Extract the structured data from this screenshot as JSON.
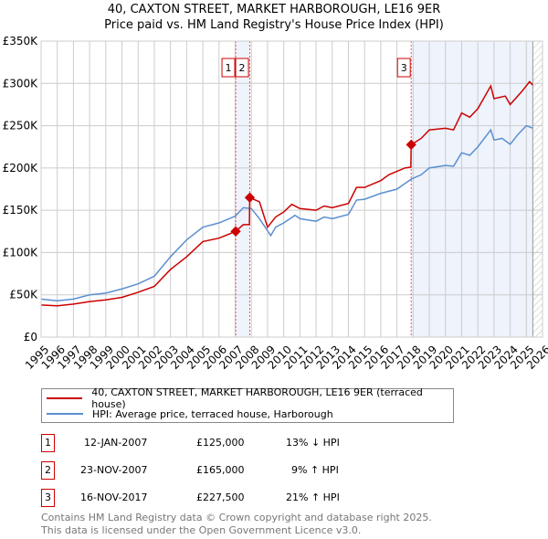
{
  "title": "40, CAXTON STREET, MARKET HARBOROUGH, LE16 9ER",
  "subtitle": "Price paid vs. HM Land Registry's House Price Index (HPI)",
  "chart_data": {
    "type": "line",
    "xlim": [
      1995,
      2026
    ],
    "ylim": [
      0,
      350000
    ],
    "x_ticks": [
      "1995",
      "1996",
      "1997",
      "1998",
      "1999",
      "2000",
      "2001",
      "2002",
      "2003",
      "2004",
      "2005",
      "2006",
      "2007",
      "2008",
      "2009",
      "2010",
      "2011",
      "2012",
      "2013",
      "2014",
      "2015",
      "2016",
      "2017",
      "2018",
      "2019",
      "2020",
      "2021",
      "2022",
      "2023",
      "2024",
      "2025",
      "2026"
    ],
    "y_ticks": [
      {
        "v": 0,
        "label": "£0"
      },
      {
        "v": 50000,
        "label": "£50K"
      },
      {
        "v": 100000,
        "label": "£100K"
      },
      {
        "v": 150000,
        "label": "£150K"
      },
      {
        "v": 200000,
        "label": "£200K"
      },
      {
        "v": 250000,
        "label": "£250K"
      },
      {
        "v": 300000,
        "label": "£300K"
      },
      {
        "v": 350000,
        "label": "£350K"
      }
    ],
    "series": [
      {
        "name": "40, CAXTON STREET, MARKET HARBOROUGH, LE16 9ER (terraced house)",
        "color": "#cc0000",
        "x": [
          1995,
          1996,
          1997,
          1998,
          1999,
          2000,
          2001,
          2002,
          2003,
          2004,
          2005,
          2006,
          2007.03,
          2007.5,
          2007.88,
          2007.9,
          2008.5,
          2009,
          2009.5,
          2010,
          2010.5,
          2011,
          2012,
          2012.5,
          2013,
          2014,
          2014.5,
          2015,
          2016,
          2016.5,
          2017.5,
          2017.86,
          2017.88,
          2018.5,
          2019,
          2020,
          2020.5,
          2021,
          2021.5,
          2022,
          2022.8,
          2023,
          2023.7,
          2024,
          2024.7,
          2025.2,
          2025.4
        ],
        "y": [
          38000,
          37000,
          39000,
          42000,
          44000,
          47000,
          53000,
          60000,
          80000,
          95000,
          113000,
          117000,
          125000,
          133000,
          133000,
          165000,
          160000,
          130000,
          142000,
          148000,
          157000,
          152000,
          150000,
          155000,
          153000,
          158000,
          177000,
          177000,
          185000,
          192000,
          200000,
          201000,
          227500,
          235000,
          245000,
          247000,
          245000,
          265000,
          260000,
          270000,
          297000,
          282000,
          285000,
          275000,
          290000,
          302000,
          298000
        ]
      },
      {
        "name": "HPI: Average price, terraced house, Harborough",
        "color": "#5b8fd0",
        "x": [
          1995,
          1996,
          1997,
          1998,
          1999,
          2000,
          2001,
          2002,
          2003,
          2004,
          2005,
          2006,
          2007,
          2007.5,
          2008,
          2008.5,
          2009.2,
          2009.5,
          2010,
          2010.7,
          2011,
          2012,
          2012.5,
          2013,
          2014,
          2014.5,
          2015,
          2016,
          2017,
          2017.9,
          2018.5,
          2019,
          2020,
          2020.5,
          2021,
          2021.5,
          2022,
          2022.8,
          2023,
          2023.5,
          2024,
          2024.5,
          2025,
          2025.4
        ],
        "y": [
          45000,
          43000,
          45000,
          50000,
          52000,
          57000,
          63000,
          72000,
          95000,
          115000,
          130000,
          135000,
          143000,
          153000,
          152000,
          140000,
          120000,
          130000,
          135000,
          144000,
          140000,
          137000,
          142000,
          140000,
          145000,
          162000,
          163000,
          170000,
          175000,
          187000,
          192000,
          200000,
          203000,
          202000,
          218000,
          215000,
          225000,
          245000,
          233000,
          235000,
          228000,
          240000,
          250000,
          247000
        ]
      }
    ],
    "sales": [
      {
        "id": "1",
        "x": 2007.03,
        "y": 125000
      },
      {
        "id": "2",
        "x": 2007.9,
        "y": 165000
      },
      {
        "id": "3",
        "x": 2017.88,
        "y": 227500
      }
    ],
    "shaded": [
      [
        2007.03,
        2007.9
      ],
      [
        2017.88,
        2025.4
      ]
    ]
  },
  "legend": [
    {
      "label": "40, CAXTON STREET, MARKET HARBOROUGH, LE16 9ER (terraced house)",
      "color": "#cc0000"
    },
    {
      "label": "HPI: Average price, terraced house, Harborough",
      "color": "#5b8fd0"
    }
  ],
  "table": [
    {
      "id": "1",
      "date": "12-JAN-2007",
      "price": "£125,000",
      "hpi": "13% ↓ HPI"
    },
    {
      "id": "2",
      "date": "23-NOV-2007",
      "price": "£165,000",
      "hpi": "9% ↑ HPI"
    },
    {
      "id": "3",
      "date": "16-NOV-2017",
      "price": "£227,500",
      "hpi": "21% ↑ HPI"
    }
  ],
  "footer": [
    "Contains HM Land Registry data © Crown copyright and database right 2025.",
    "This data is licensed under the Open Government Licence v3.0."
  ]
}
